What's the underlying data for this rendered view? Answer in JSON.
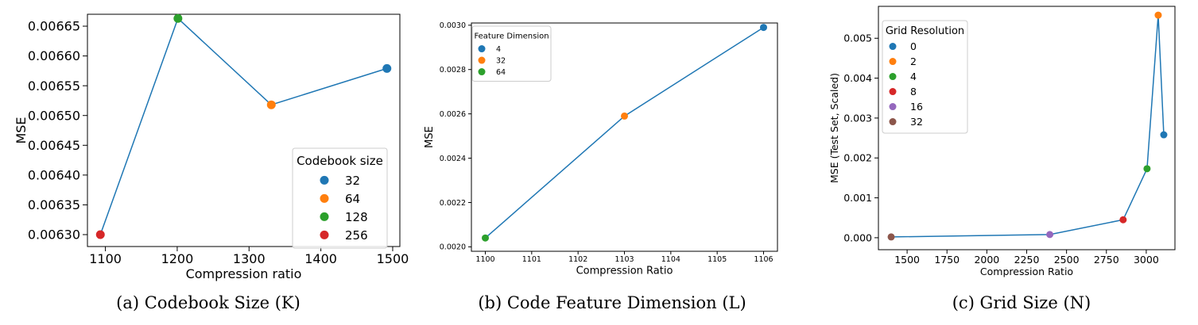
{
  "chart_data": [
    {
      "type": "line",
      "caption": "(a) Codebook Size (K)",
      "xlabel": "Compression ratio",
      "ylabel": "MSE",
      "xlim": [
        1075,
        1510
      ],
      "ylim": [
        0.00628,
        0.00667
      ],
      "xticks": [
        1100,
        1200,
        1300,
        1400,
        1500
      ],
      "yticks": [
        0.0063,
        0.00635,
        0.0064,
        0.00645,
        0.0065,
        0.00655,
        0.0066,
        0.00665
      ],
      "ytick_decimals": 5,
      "line_color": "#1f77b4",
      "legend": {
        "title": "Codebook size",
        "placement": "lower-right"
      },
      "series": [
        {
          "name": "32",
          "color": "#1f77b4",
          "x": 1492,
          "y": 0.006579
        },
        {
          "name": "64",
          "color": "#ff7f0e",
          "x": 1331,
          "y": 0.006518
        },
        {
          "name": "128",
          "color": "#2ca02c",
          "x": 1201,
          "y": 0.006663
        },
        {
          "name": "256",
          "color": "#d62728",
          "x": 1093,
          "y": 0.0063
        }
      ],
      "line_order": [
        "256",
        "128",
        "64",
        "32"
      ]
    },
    {
      "type": "line",
      "caption": "(b) Code Feature Dimension (L)",
      "xlabel": "Compression Ratio",
      "ylabel": "MSE",
      "xlim": [
        1099.7,
        1106.3
      ],
      "ylim": [
        0.00198,
        0.00301
      ],
      "xticks": [
        1100,
        1101,
        1102,
        1103,
        1104,
        1105,
        1106
      ],
      "yticks": [
        0.002,
        0.0022,
        0.0024,
        0.0026,
        0.0028,
        0.003
      ],
      "ytick_decimals": 4,
      "line_color": "#1f77b4",
      "legend": {
        "title": "Feature Dimension",
        "placement": "upper-left"
      },
      "series": [
        {
          "name": "4",
          "color": "#1f77b4",
          "x": 1106,
          "y": 0.00299
        },
        {
          "name": "32",
          "color": "#ff7f0e",
          "x": 1103,
          "y": 0.00259
        },
        {
          "name": "64",
          "color": "#2ca02c",
          "x": 1100,
          "y": 0.00204
        }
      ],
      "line_order": [
        "64",
        "32",
        "4"
      ]
    },
    {
      "type": "line",
      "caption": "(c) Grid Size (N)",
      "xlabel": "Compression Ratio",
      "ylabel": "MSE (Test Set, Scaled)",
      "xlim": [
        1320,
        3180
      ],
      "ylim": [
        -0.0003,
        0.0058
      ],
      "xticks": [
        1500,
        1750,
        2000,
        2250,
        2500,
        2750,
        3000
      ],
      "yticks": [
        0.0,
        0.001,
        0.002,
        0.003,
        0.004,
        0.005
      ],
      "ytick_decimals": 3,
      "line_color": "#1f77b4",
      "legend": {
        "title": "Grid Resolution",
        "placement": "upper-left"
      },
      "series": [
        {
          "name": "0",
          "color": "#1f77b4",
          "x": 3110,
          "y": 0.00258
        },
        {
          "name": "2",
          "color": "#ff7f0e",
          "x": 3075,
          "y": 0.00558
        },
        {
          "name": "4",
          "color": "#2ca02c",
          "x": 3005,
          "y": 0.00173
        },
        {
          "name": "8",
          "color": "#d62728",
          "x": 2855,
          "y": 0.00045
        },
        {
          "name": "16",
          "color": "#9467bd",
          "x": 2395,
          "y": 8e-05
        },
        {
          "name": "32",
          "color": "#8c564b",
          "x": 1400,
          "y": 2e-05
        }
      ],
      "line_order": [
        "32",
        "16",
        "8",
        "4",
        "2",
        "0"
      ]
    }
  ]
}
